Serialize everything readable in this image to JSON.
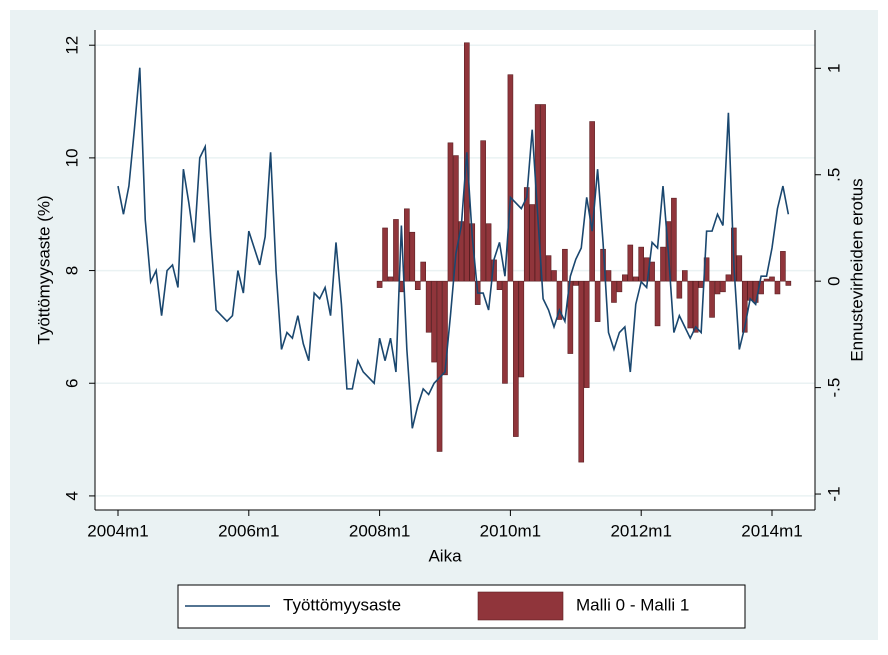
{
  "chart_data": {
    "type": "line+bar",
    "x_label": "Aika",
    "y_label": "Työttömyysaste (%)",
    "y2_label": "Ennustevirheiden erotus",
    "categories": [
      "2004m1",
      "2004m2",
      "2004m3",
      "2004m4",
      "2004m5",
      "2004m6",
      "2004m7",
      "2004m8",
      "2004m9",
      "2004m10",
      "2004m11",
      "2004m12",
      "2005m1",
      "2005m2",
      "2005m3",
      "2005m4",
      "2005m5",
      "2005m6",
      "2005m7",
      "2005m8",
      "2005m9",
      "2005m10",
      "2005m11",
      "2005m12",
      "2006m1",
      "2006m2",
      "2006m3",
      "2006m4",
      "2006m5",
      "2006m6",
      "2006m7",
      "2006m8",
      "2006m9",
      "2006m10",
      "2006m11",
      "2006m12",
      "2007m1",
      "2007m2",
      "2007m3",
      "2007m4",
      "2007m5",
      "2007m6",
      "2007m7",
      "2007m8",
      "2007m9",
      "2007m10",
      "2007m11",
      "2007m12",
      "2008m1",
      "2008m2",
      "2008m3",
      "2008m4",
      "2008m5",
      "2008m6",
      "2008m7",
      "2008m8",
      "2008m9",
      "2008m10",
      "2008m11",
      "2008m12",
      "2009m1",
      "2009m2",
      "2009m3",
      "2009m4",
      "2009m5",
      "2009m6",
      "2009m7",
      "2009m8",
      "2009m9",
      "2009m10",
      "2009m11",
      "2009m12",
      "2010m1",
      "2010m2",
      "2010m3",
      "2010m4",
      "2010m5",
      "2010m6",
      "2010m7",
      "2010m8",
      "2010m9",
      "2010m10",
      "2010m11",
      "2010m12",
      "2011m1",
      "2011m2",
      "2011m3",
      "2011m4",
      "2011m5",
      "2011m6",
      "2011m7",
      "2011m8",
      "2011m9",
      "2011m10",
      "2011m11",
      "2011m12",
      "2012m1",
      "2012m2",
      "2012m3",
      "2012m4",
      "2012m5",
      "2012m6",
      "2012m7",
      "2012m8",
      "2012m9",
      "2012m10",
      "2012m11",
      "2012m12",
      "2013m1",
      "2013m2",
      "2013m3",
      "2013m4",
      "2013m5",
      "2013m6",
      "2013m7",
      "2013m8",
      "2013m9",
      "2013m10",
      "2013m11",
      "2013m12",
      "2014m1",
      "2014m2",
      "2014m3",
      "2014m4"
    ],
    "xticks": [
      "2004m1",
      "2006m1",
      "2008m1",
      "2010m1",
      "2012m1",
      "2014m1"
    ],
    "ylim": [
      3.75,
      12.27
    ],
    "yticks": [
      4,
      6,
      8,
      10,
      12
    ],
    "y2lim": [
      -1.075,
      1.18
    ],
    "y2ticks": [
      -1,
      {
        "value": -0.5,
        "label": "-.5"
      },
      0,
      {
        "value": 0.5,
        "label": ".5"
      },
      1
    ],
    "grid": true,
    "series": [
      {
        "name": "Työttömyysaste",
        "type": "line",
        "color": "#1a476f",
        "values": [
          9.5,
          9.0,
          9.5,
          10.5,
          11.6,
          8.9,
          7.8,
          8.0,
          7.2,
          8.0,
          8.1,
          7.7,
          9.8,
          9.2,
          8.5,
          10.0,
          10.2,
          8.6,
          7.3,
          7.2,
          7.1,
          7.2,
          8.0,
          7.6,
          8.7,
          8.4,
          8.1,
          8.6,
          10.1,
          8.0,
          6.6,
          6.9,
          6.8,
          7.2,
          6.7,
          6.4,
          7.6,
          7.5,
          7.7,
          7.2,
          8.5,
          7.4,
          5.9,
          5.9,
          6.4,
          6.2,
          6.1,
          6.0,
          6.8,
          6.4,
          6.8,
          6.2,
          8.8,
          6.6,
          5.2,
          5.6,
          5.9,
          5.8,
          6.0,
          6.1,
          6.2,
          7.2,
          8.3,
          8.8,
          10.1,
          8.6,
          7.6,
          7.6,
          7.3,
          8.2,
          8.5,
          7.9,
          9.3,
          9.2,
          9.1,
          9.3,
          10.5,
          9.0,
          7.5,
          7.3,
          7.0,
          7.3,
          7.1,
          7.9,
          8.2,
          8.4,
          9.3,
          8.7,
          9.8,
          8.5,
          6.9,
          6.6,
          6.9,
          7.0,
          6.2,
          7.4,
          7.8,
          7.7,
          8.5,
          8.4,
          9.5,
          8.3,
          6.9,
          7.2,
          7.0,
          6.8,
          7.0,
          6.9,
          8.7,
          8.7,
          9.0,
          8.8,
          10.8,
          8.1,
          6.6,
          7.0,
          7.5,
          7.4,
          7.9,
          7.9,
          8.4,
          9.1,
          9.5,
          9.0
        ]
      },
      {
        "name": "Malli 0 - Malli 1",
        "type": "bar",
        "axis": "y2",
        "color": "#90353b",
        "values": [
          null,
          null,
          null,
          null,
          null,
          null,
          null,
          null,
          null,
          null,
          null,
          null,
          null,
          null,
          null,
          null,
          null,
          null,
          null,
          null,
          null,
          null,
          null,
          null,
          null,
          null,
          null,
          null,
          null,
          null,
          null,
          null,
          null,
          null,
          null,
          null,
          null,
          null,
          null,
          null,
          null,
          null,
          null,
          null,
          null,
          null,
          null,
          null,
          -0.03,
          0.25,
          0.02,
          0.29,
          -0.05,
          0.34,
          0.23,
          -0.04,
          0.09,
          -0.24,
          -0.38,
          -0.8,
          -0.44,
          0.65,
          0.59,
          0.28,
          1.12,
          0.27,
          -0.11,
          0.66,
          0.27,
          0.1,
          -0.04,
          -0.48,
          0.97,
          -0.73,
          -0.45,
          0.44,
          0.36,
          0.83,
          0.83,
          0.12,
          0.05,
          -0.18,
          0.15,
          -0.34,
          -0.02,
          -0.85,
          -0.5,
          0.75,
          -0.19,
          0.15,
          0.05,
          -0.1,
          -0.05,
          0.03,
          0.17,
          0.02,
          0.16,
          0.11,
          0.09,
          -0.21,
          0.16,
          0.28,
          0.39,
          -0.08,
          0.05,
          -0.22,
          -0.24,
          -0.03,
          0.11,
          -0.17,
          -0.06,
          -0.05,
          0.03,
          0.25,
          0.12,
          -0.24,
          -0.09,
          -0.1,
          -0.06,
          0.01,
          0.02,
          -0.06,
          0.14,
          -0.02
        ]
      }
    ]
  }
}
